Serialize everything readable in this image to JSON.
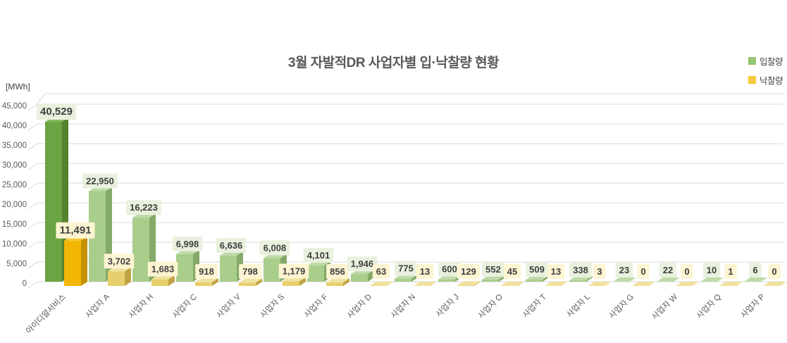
{
  "title": "3월 자발적DR 사업자별 입·낙찰량 현황",
  "unit_label": "[MWh]",
  "legend": [
    {
      "label": "입찰량",
      "color": "#94c571"
    },
    {
      "label": "낙찰량",
      "color": "#f9c73e"
    }
  ],
  "chart_data": {
    "type": "bar",
    "title": "3월 자발적DR 사업자별 입·낙찰량 현황",
    "ylabel": "[MWh]",
    "xlabel": "",
    "ylim": [
      0,
      45000
    ],
    "ytick_step": 5000,
    "grid": true,
    "legend_position": "top-right",
    "style": "3d-clustered",
    "highlight_category": "아이디알서비스",
    "categories": [
      "아이디알서비스",
      "사업자 A",
      "사업자 H",
      "사업자 C",
      "사업자 V",
      "사업자 S",
      "사업자 F",
      "사업자 D",
      "사업자 N",
      "사업자 J",
      "사업자 O",
      "사업자 T",
      "사업자 L",
      "사업자 G",
      "사업자 W",
      "사업자 Q",
      "사업자 P"
    ],
    "series": [
      {
        "name": "입찰량",
        "values": [
          40529,
          22950,
          16223,
          6998,
          6636,
          6008,
          4101,
          1946,
          775,
          600,
          552,
          509,
          338,
          23,
          22,
          10,
          6
        ]
      },
      {
        "name": "낙찰량",
        "values": [
          11491,
          3702,
          1683,
          918,
          798,
          1179,
          856,
          63,
          13,
          129,
          45,
          13,
          3,
          0,
          0,
          1,
          0
        ]
      }
    ],
    "colors": {
      "bid_highlight": {
        "front": "#6ba442",
        "side": "#54822f",
        "top": "#84b75d"
      },
      "bid_normal": {
        "front": "#a9ce8c",
        "side": "#84a968",
        "top": "#bedaa8"
      },
      "award_highlight": {
        "front": "#f2b705",
        "side": "#c49204",
        "top": "#f7ca3a"
      },
      "award_normal": {
        "front": "#e7cf6d",
        "side": "#c0a342",
        "top": "#f0e19e"
      },
      "bid_label_bg": "#e9f1de",
      "award_label_bg": "#fdf4d2",
      "value_text": "#3f3f3f",
      "grid": "#d9d9d9",
      "axis_text": "#595959",
      "title_text": "#595959"
    }
  }
}
